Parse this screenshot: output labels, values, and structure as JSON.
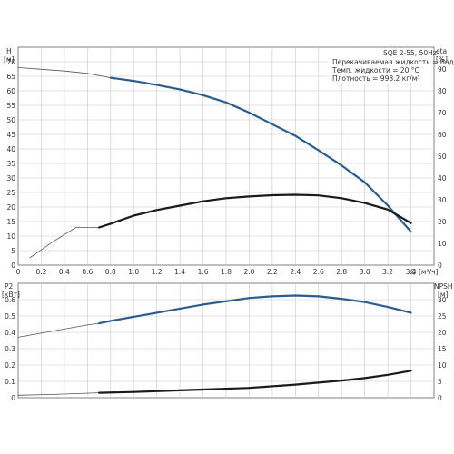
{
  "chart_data": [
    {
      "type": "line",
      "panel": "top",
      "info_box": {
        "title": "SQE 2-55, 50Hz",
        "lines": [
          "Перекачиваемая жидкость = Вода",
          "Темп. жидкости = 20 °C",
          "Плотность = 998.2 кг/м³"
        ]
      },
      "left_axis": {
        "label": "H",
        "unit": "[м]",
        "ticks": [
          "0",
          "5",
          "10",
          "15",
          "20",
          "25",
          "30",
          "35",
          "40",
          "45",
          "50",
          "55",
          "60",
          "65",
          "70"
        ],
        "ylim": [
          0,
          75
        ]
      },
      "right_axis": {
        "label": "eta",
        "unit": "[%]",
        "ticks": [
          "0",
          "10",
          "20",
          "30",
          "40",
          "50",
          "60",
          "70",
          "80",
          "90"
        ],
        "ylim": [
          0,
          100
        ]
      },
      "x_axis": {
        "label": "Q",
        "unit": "[м³/ч]",
        "ticks": [
          "0",
          "0.2",
          "0.4",
          "0.6",
          "0.8",
          "1.0",
          "1.2",
          "1.4",
          "1.6",
          "1.8",
          "2.0",
          "2.2",
          "2.4",
          "2.6",
          "2.8",
          "3.0",
          "3.2",
          "3.4"
        ],
        "xlim": [
          0,
          3.6
        ]
      },
      "grid": true,
      "series": [
        {
          "axis": "left",
          "color": "#2b5d8c",
          "points": [
            [
              0,
              68
            ],
            [
              0.2,
              67.4
            ],
            [
              0.4,
              66.8
            ],
            [
              0.6,
              66
            ],
            [
              0.8,
              64.5
            ],
            [
              1.0,
              63.4
            ],
            [
              1.2,
              62
            ],
            [
              1.4,
              60.5
            ],
            [
              1.6,
              58.5
            ],
            [
              1.8,
              56
            ],
            [
              2.0,
              52.5
            ],
            [
              2.2,
              48.5
            ],
            [
              2.4,
              44.5
            ],
            [
              2.6,
              39.5
            ],
            [
              2.8,
              34.3
            ],
            [
              3.0,
              28.5
            ],
            [
              3.2,
              20.5
            ],
            [
              3.4,
              11.5
            ]
          ],
          "operating_range": [
            0.7,
            3.4
          ]
        },
        {
          "axis": "right",
          "color": "#1a1a1a",
          "points": [
            [
              0.1,
              3.3
            ],
            [
              0.3,
              10.7
            ],
            [
              0.5,
              17.3
            ],
            [
              0.7,
              17.3
            ],
            [
              0.8,
              19
            ],
            [
              1.0,
              22.7
            ],
            [
              1.2,
              25.3
            ],
            [
              1.4,
              27.3
            ],
            [
              1.6,
              29.3
            ],
            [
              1.8,
              30.7
            ],
            [
              2.0,
              31.5
            ],
            [
              2.2,
              32.1
            ],
            [
              2.4,
              32.3
            ],
            [
              2.6,
              32
            ],
            [
              2.8,
              30.7
            ],
            [
              3.0,
              28.5
            ],
            [
              3.2,
              25.5
            ],
            [
              3.4,
              19.3
            ]
          ],
          "operating_range": [
            0.7,
            3.4
          ]
        }
      ]
    },
    {
      "type": "line",
      "panel": "bottom",
      "left_axis": {
        "label": "P2",
        "unit": "[кВт]",
        "ticks": [
          "0",
          "0.1",
          "0.2",
          "0.3",
          "0.4",
          "0.5",
          "0.6"
        ],
        "ylim": [
          0,
          0.7
        ]
      },
      "right_axis": {
        "label": "NPSH",
        "unit": "[м]",
        "ticks": [
          "0",
          "5",
          "10",
          "15",
          "20",
          "25",
          "30"
        ],
        "ylim": [
          0,
          35
        ]
      },
      "x_axis": {
        "xlim": [
          0,
          3.6
        ]
      },
      "grid": true,
      "series": [
        {
          "axis": "left",
          "color": "#2b5d8c",
          "points": [
            [
              0,
              0.37
            ],
            [
              0.2,
              0.395
            ],
            [
              0.4,
              0.42
            ],
            [
              0.6,
              0.445
            ],
            [
              0.7,
              0.455
            ],
            [
              0.8,
              0.47
            ],
            [
              1.0,
              0.495
            ],
            [
              1.2,
              0.52
            ],
            [
              1.4,
              0.545
            ],
            [
              1.6,
              0.57
            ],
            [
              1.8,
              0.59
            ],
            [
              2.0,
              0.61
            ],
            [
              2.2,
              0.62
            ],
            [
              2.4,
              0.625
            ],
            [
              2.6,
              0.62
            ],
            [
              2.8,
              0.605
            ],
            [
              3.0,
              0.585
            ],
            [
              3.2,
              0.555
            ],
            [
              3.4,
              0.52
            ]
          ],
          "operating_range": [
            0.7,
            3.4
          ]
        },
        {
          "axis": "left",
          "color": "#1a1a1a",
          "points": [
            [
              0,
              0.015
            ],
            [
              0.3,
              0.02
            ],
            [
              0.7,
              0.03
            ],
            [
              1.0,
              0.035
            ],
            [
              1.4,
              0.045
            ],
            [
              1.8,
              0.055
            ],
            [
              2.0,
              0.06
            ],
            [
              2.4,
              0.08
            ],
            [
              2.8,
              0.105
            ],
            [
              3.0,
              0.12
            ],
            [
              3.2,
              0.14
            ],
            [
              3.4,
              0.165
            ]
          ],
          "operating_range": [
            0.7,
            3.4
          ]
        }
      ]
    }
  ]
}
